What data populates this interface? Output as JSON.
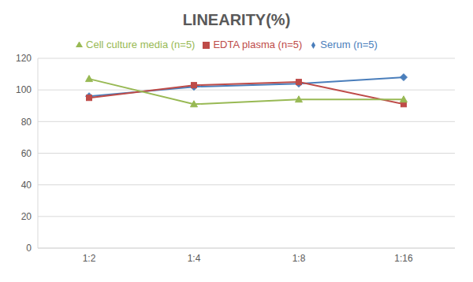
{
  "chart_data": {
    "type": "line",
    "title": "LINEARITY(%)",
    "categories": [
      "1:2",
      "1:4",
      "1:8",
      "1:16"
    ],
    "series": [
      {
        "name": "Serum (n=5)",
        "color": "#4a7ebb",
        "marker": "diamond",
        "values": [
          96,
          102,
          104,
          108
        ]
      },
      {
        "name": "EDTA plasma (n=5)",
        "color": "#be4b48",
        "marker": "square",
        "values": [
          95,
          103,
          105,
          91
        ]
      },
      {
        "name": "Cell culture media (n=5)",
        "color": "#98b954",
        "marker": "triangle",
        "values": [
          107,
          91,
          94,
          94
        ]
      }
    ],
    "ylim": [
      0,
      120
    ],
    "yticks": [
      0,
      20,
      40,
      60,
      80,
      100,
      120
    ],
    "grid": true,
    "legend": "top"
  }
}
